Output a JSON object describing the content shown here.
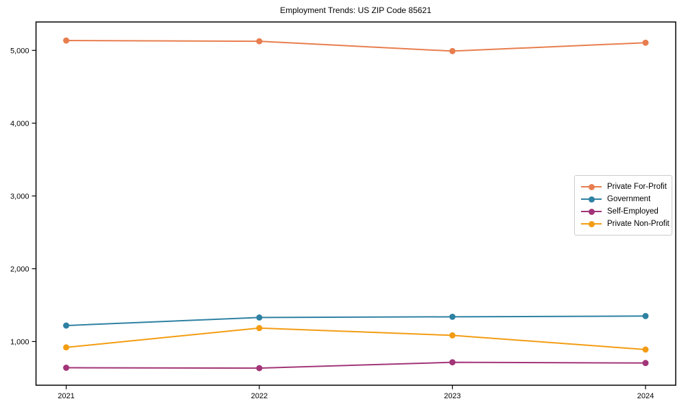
{
  "chart_data": {
    "type": "line",
    "title": "Employment Trends: US ZIP Code 85621",
    "xlabel": "",
    "ylabel": "",
    "x": [
      "2021",
      "2022",
      "2023",
      "2024"
    ],
    "ylim": [
      400,
      5390
    ],
    "yticks": [
      1000,
      2000,
      3000,
      4000,
      5000
    ],
    "ytick_labels": [
      "1,000",
      "2,000",
      "3,000",
      "4,000",
      "5,000"
    ],
    "grid": false,
    "legend_position": "center right",
    "marker": "circle",
    "axis_color": "#000000",
    "background": "#ffffff",
    "series": [
      {
        "name": "Private For-Profit",
        "color": "#E87D4E",
        "values": [
          5135,
          5125,
          4990,
          5105
        ]
      },
      {
        "name": "Government",
        "color": "#2E81A2",
        "values": [
          1220,
          1330,
          1340,
          1350
        ]
      },
      {
        "name": "Self-Employed",
        "color": "#A23477",
        "values": [
          640,
          635,
          715,
          705
        ]
      },
      {
        "name": "Private Non-Profit",
        "color": "#F39C12",
        "values": [
          920,
          1185,
          1085,
          890
        ]
      }
    ]
  }
}
